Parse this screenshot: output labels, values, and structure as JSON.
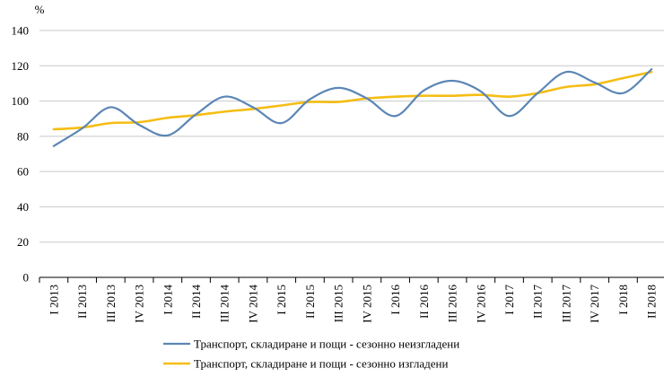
{
  "chart_data": {
    "type": "line",
    "ylabel": "%",
    "ylim": [
      0,
      140
    ],
    "yticks": [
      0,
      20,
      40,
      60,
      80,
      100,
      120,
      140
    ],
    "grid": "horizontal",
    "legend_position": "bottom",
    "categories": [
      "I 2013",
      "II 2013",
      "III 2013",
      "IV 2013",
      "I 2014",
      "II 2014",
      "III 2014",
      "IV 2014",
      "I 2015",
      "II 2015",
      "III 2015",
      "IV 2015",
      "I 2016",
      "II 2016",
      "III 2016",
      "IV 2016",
      "I 2017",
      "II 2017",
      "III 2017",
      "IV 2017",
      "I 2018",
      "II 2018"
    ],
    "series": [
      {
        "name": "Транспорт, складиране и пощи - сезонно неизгладени",
        "color": "#5b86b5",
        "values": [
          74.5,
          84.5,
          96.5,
          86.5,
          80.5,
          92.5,
          102.5,
          96.5,
          87.5,
          101,
          107.5,
          101.5,
          91.5,
          106,
          111.5,
          105.5,
          91.5,
          104.5,
          116.5,
          110.5,
          104.5,
          118
        ]
      },
      {
        "name": "Транспорт, складиране и пощи - сезонно изгладени",
        "color": "#f5bd14",
        "values": [
          84,
          85,
          87.5,
          88,
          90.5,
          92,
          94,
          95.5,
          97.5,
          99.5,
          99.5,
          101.5,
          102.5,
          103,
          103,
          103.5,
          102.5,
          104.5,
          108,
          109.5,
          113,
          116.5
        ]
      }
    ]
  }
}
